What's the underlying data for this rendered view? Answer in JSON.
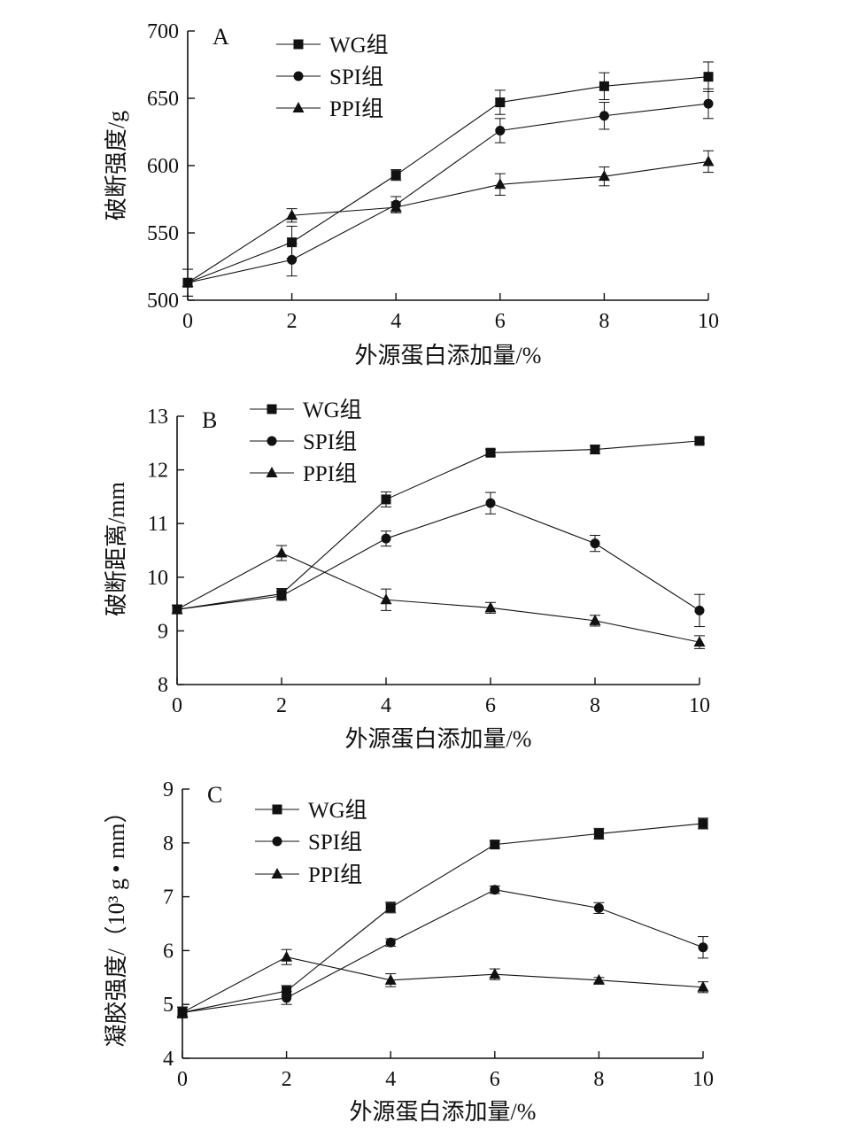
{
  "chart_data": [
    {
      "type": "line",
      "panel": "A",
      "xlabel": "外源蛋白添加量/%",
      "ylabel": "破断强度/g",
      "x": [
        0,
        2,
        4,
        6,
        8,
        10
      ],
      "xticks": [
        "0",
        "2",
        "4",
        "6",
        "8",
        "10"
      ],
      "xlim": [
        0,
        10
      ],
      "ylim": [
        500,
        700
      ],
      "yticks": [
        "500",
        "550",
        "600",
        "650",
        "700"
      ],
      "legend_position": "top-left",
      "series": [
        {
          "name": "WG组",
          "marker": "square",
          "values": [
            513,
            543,
            593,
            647,
            659,
            666
          ],
          "errors": [
            10,
            12,
            4,
            9,
            10,
            11
          ]
        },
        {
          "name": "SPI组",
          "marker": "circle",
          "values": [
            513,
            530,
            571,
            626,
            637,
            646
          ],
          "errors": [
            10,
            12,
            6,
            9,
            10,
            11
          ]
        },
        {
          "name": "PPI组",
          "marker": "triangle",
          "values": [
            513,
            563,
            569,
            586,
            592,
            603
          ],
          "errors": [
            10,
            5,
            4,
            8,
            7,
            8
          ]
        }
      ]
    },
    {
      "type": "line",
      "panel": "B",
      "xlabel": "外源蛋白添加量/%",
      "ylabel": "破断距离/mm",
      "x": [
        0,
        2,
        4,
        6,
        8,
        10
      ],
      "xticks": [
        "0",
        "2",
        "4",
        "6",
        "8",
        "10"
      ],
      "xlim": [
        0,
        10
      ],
      "ylim": [
        8,
        13
      ],
      "yticks": [
        "8",
        "9",
        "10",
        "11",
        "12",
        "13"
      ],
      "legend_position": "top-left",
      "series": [
        {
          "name": "WG组",
          "marker": "square",
          "values": [
            9.4,
            9.69,
            11.45,
            12.32,
            12.38,
            12.54
          ],
          "errors": [
            0.08,
            0.1,
            0.14,
            0.06,
            0.08,
            0.05
          ]
        },
        {
          "name": "SPI组",
          "marker": "circle",
          "values": [
            9.4,
            9.65,
            10.72,
            11.38,
            10.63,
            9.38
          ],
          "errors": [
            0.08,
            0.08,
            0.14,
            0.2,
            0.15,
            0.3
          ]
        },
        {
          "name": "PPI组",
          "marker": "triangle",
          "values": [
            9.4,
            10.45,
            9.58,
            9.43,
            9.19,
            8.79
          ],
          "errors": [
            0.08,
            0.14,
            0.2,
            0.1,
            0.1,
            0.12
          ]
        }
      ]
    },
    {
      "type": "line",
      "panel": "C",
      "xlabel": "外源蛋白添加量/%",
      "ylabel": "凝胶强度/（10³ g • mm）",
      "x": [
        0,
        2,
        4,
        6,
        8,
        10
      ],
      "xticks": [
        "0",
        "2",
        "4",
        "6",
        "8",
        "10"
      ],
      "xlim": [
        0,
        10
      ],
      "ylim": [
        4,
        9
      ],
      "yticks": [
        "4",
        "5",
        "6",
        "7",
        "8",
        "9"
      ],
      "legend_position": "top-left",
      "series": [
        {
          "name": "WG组",
          "marker": "square",
          "values": [
            4.85,
            5.25,
            6.8,
            7.97,
            8.17,
            8.36
          ],
          "errors": [
            0.1,
            0.1,
            0.1,
            0.07,
            0.1,
            0.1
          ]
        },
        {
          "name": "SPI组",
          "marker": "circle",
          "values": [
            4.85,
            5.12,
            6.15,
            7.13,
            6.79,
            6.06
          ],
          "errors": [
            0.1,
            0.12,
            0.07,
            0.07,
            0.1,
            0.2
          ]
        },
        {
          "name": "PPI组",
          "marker": "triangle",
          "values": [
            4.85,
            5.88,
            5.45,
            5.56,
            5.45,
            5.32
          ],
          "errors": [
            0.1,
            0.14,
            0.12,
            0.1,
            0.05,
            0.1
          ]
        }
      ]
    }
  ]
}
